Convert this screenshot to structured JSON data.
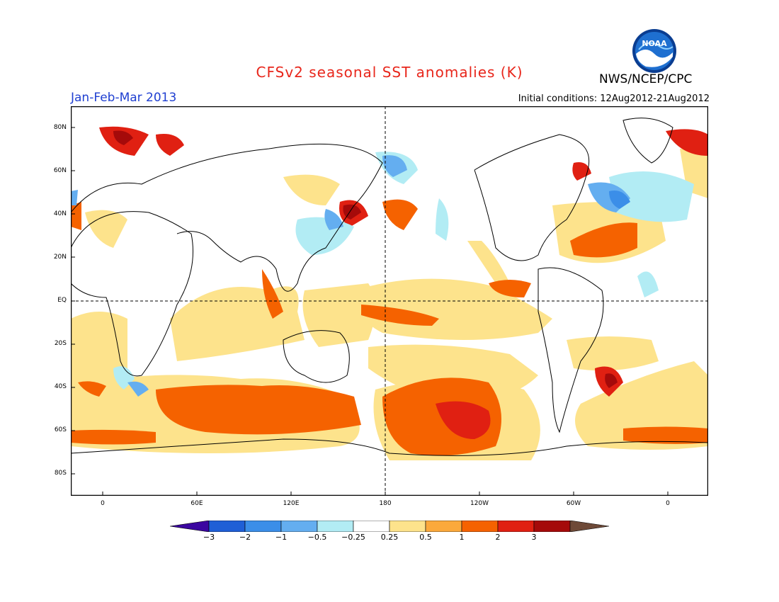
{
  "header": {
    "title": "CFSv2 seasonal SST anomalies (K)",
    "period": "Jan-Feb-Mar 2013",
    "initial_conditions": "Initial conditions: 12Aug2012-21Aug2012",
    "agency": "NWS/NCEP/CPC",
    "logo_text": "NOAA"
  },
  "map": {
    "lat_ticks": [
      "80N",
      "60N",
      "40N",
      "20N",
      "EQ",
      "20S",
      "40S",
      "60S",
      "80S"
    ],
    "lon_ticks": [
      "0",
      "60E",
      "120E",
      "180",
      "120W",
      "60W",
      "0"
    ]
  },
  "colorbar": {
    "labels": [
      "-3",
      "-2",
      "-1",
      "-0.5",
      "-0.25",
      "0.25",
      "0.5",
      "1",
      "2",
      "3"
    ],
    "colors": [
      "#3b06a0",
      "#1f5fd6",
      "#3b8ee8",
      "#64aef0",
      "#b2ecf4",
      "#ffffff",
      "#fde38c",
      "#fba93c",
      "#f56200",
      "#e02012",
      "#a50a0a",
      "#6e4a38"
    ]
  }
}
